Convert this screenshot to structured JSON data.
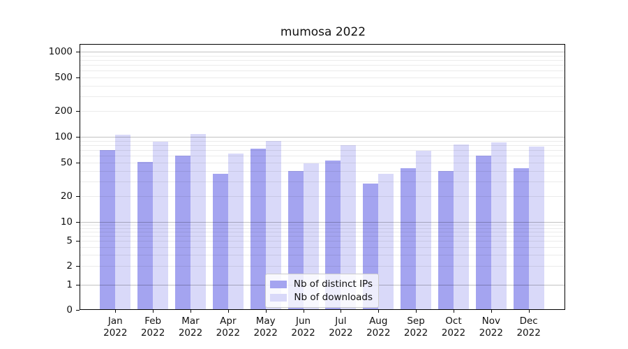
{
  "chart_data": {
    "type": "bar",
    "title": "mumosa 2022",
    "x_axis": {
      "months": [
        "Jan",
        "Feb",
        "Mar",
        "Apr",
        "May",
        "Jun",
        "Jul",
        "Aug",
        "Sep",
        "Oct",
        "Nov",
        "Dec"
      ],
      "year": "2022"
    },
    "y_axis": {
      "scale": "symlog",
      "tick_labels": [
        "1000",
        "500",
        "200",
        "100",
        "50",
        "20",
        "10",
        "5",
        "2",
        "1",
        "0"
      ],
      "major_gridlines": [
        1,
        10,
        100,
        1000
      ],
      "minor_gridlines": [
        2,
        3,
        4,
        5,
        6,
        7,
        8,
        9,
        20,
        30,
        40,
        50,
        60,
        70,
        80,
        90,
        200,
        300,
        400,
        500,
        600,
        700,
        800,
        900
      ],
      "range_top": 1200
    },
    "series": [
      {
        "name": "Nb of distinct IPs",
        "color": "#a4a4f0",
        "values": [
          70,
          51,
          60,
          37,
          72,
          40,
          53,
          28,
          43,
          40,
          60,
          43
        ]
      },
      {
        "name": "Nb of downloads",
        "color": "#d9d9f9",
        "values": [
          106,
          88,
          108,
          64,
          89,
          49,
          80,
          37,
          69,
          82,
          86,
          77
        ]
      }
    ],
    "legend": {
      "position": "bottom-center"
    },
    "grid": true
  }
}
